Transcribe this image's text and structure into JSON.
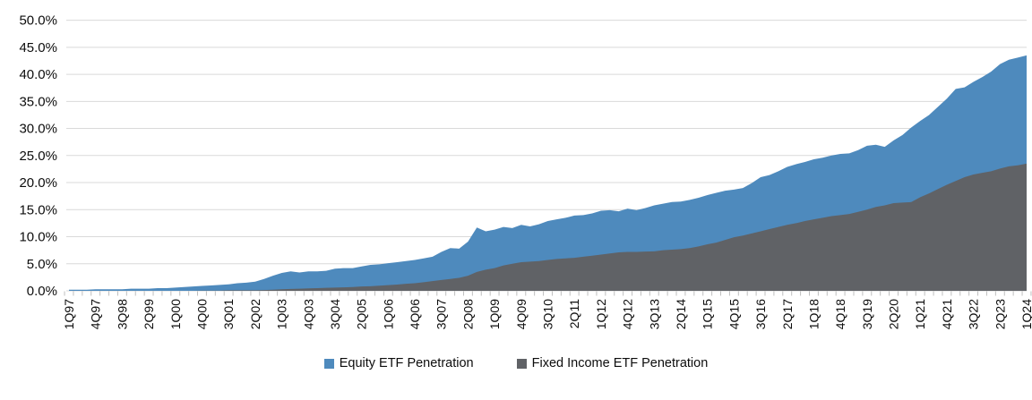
{
  "colors": {
    "equity": "#4E8ABD",
    "fixed_income": "#606266",
    "gridline": "#D9D9D9",
    "tick": "#BFBFBF",
    "axis_text": "#0D0D0D",
    "background": "#FFFFFF"
  },
  "legend": {
    "equity_label": "Equity ETF Penetration",
    "fixed_income_label": "Fixed Income ETF Penetration"
  },
  "chart_data": {
    "type": "area",
    "overlapping": true,
    "grid": true,
    "legend_position": "bottom",
    "ylim": [
      0,
      50
    ],
    "y_tick_labels": [
      "0.0%",
      "5.0%",
      "10.0%",
      "15.0%",
      "20.0%",
      "25.0%",
      "30.0%",
      "35.0%",
      "40.0%",
      "45.0%",
      "50.0%"
    ],
    "x": [
      "1Q97",
      "2Q97",
      "3Q97",
      "4Q97",
      "1Q98",
      "2Q98",
      "3Q98",
      "4Q98",
      "1Q99",
      "2Q99",
      "3Q99",
      "4Q99",
      "1Q00",
      "2Q00",
      "3Q00",
      "4Q00",
      "1Q01",
      "2Q01",
      "3Q01",
      "4Q01",
      "1Q02",
      "2Q02",
      "3Q02",
      "4Q02",
      "1Q03",
      "2Q03",
      "3Q03",
      "4Q03",
      "1Q04",
      "2Q04",
      "3Q04",
      "4Q04",
      "1Q05",
      "2Q05",
      "3Q05",
      "4Q05",
      "1Q06",
      "2Q06",
      "3Q06",
      "4Q06",
      "1Q07",
      "2Q07",
      "3Q07",
      "4Q07",
      "1Q08",
      "2Q08",
      "3Q08",
      "4Q08",
      "1Q09",
      "2Q09",
      "3Q09",
      "4Q09",
      "1Q10",
      "2Q10",
      "3Q10",
      "4Q10",
      "1Q11",
      "2Q11",
      "3Q11",
      "4Q11",
      "1Q12",
      "2Q12",
      "3Q12",
      "4Q12",
      "1Q13",
      "2Q13",
      "3Q13",
      "4Q13",
      "1Q14",
      "2Q14",
      "3Q14",
      "4Q14",
      "1Q15",
      "2Q15",
      "3Q15",
      "4Q15",
      "1Q16",
      "2Q16",
      "3Q16",
      "4Q16",
      "1Q17",
      "2Q17",
      "3Q17",
      "4Q17",
      "1Q18",
      "2Q18",
      "3Q18",
      "4Q18",
      "1Q19",
      "2Q19",
      "3Q19",
      "4Q19",
      "1Q20",
      "2Q20",
      "3Q20",
      "4Q20",
      "1Q21",
      "2Q21",
      "3Q21",
      "4Q21",
      "1Q22",
      "2Q22",
      "3Q22",
      "4Q22",
      "1Q23",
      "2Q23",
      "3Q23",
      "4Q23",
      "1Q24"
    ],
    "x_tick_labels": [
      "1Q97",
      "4Q97",
      "3Q98",
      "2Q99",
      "1Q00",
      "4Q00",
      "3Q01",
      "2Q02",
      "1Q03",
      "4Q03",
      "3Q04",
      "2Q05",
      "1Q06",
      "4Q06",
      "3Q07",
      "2Q08",
      "1Q09",
      "4Q09",
      "3Q10",
      "2Q11",
      "1Q12",
      "4Q12",
      "3Q13",
      "2Q14",
      "1Q15",
      "4Q15",
      "3Q16",
      "2Q17",
      "1Q18",
      "4Q18",
      "3Q19",
      "2Q20",
      "1Q21",
      "4Q21",
      "3Q22",
      "2Q23",
      "1Q24"
    ],
    "x_tick_every": 3,
    "series": [
      {
        "name": "Equity ETF Penetration",
        "color": "#4E8ABD",
        "values": [
          0.2,
          0.2,
          0.2,
          0.3,
          0.3,
          0.3,
          0.3,
          0.4,
          0.4,
          0.4,
          0.5,
          0.5,
          0.6,
          0.7,
          0.8,
          0.9,
          1.0,
          1.1,
          1.2,
          1.4,
          1.5,
          1.7,
          2.2,
          2.8,
          3.3,
          3.6,
          3.4,
          3.6,
          3.6,
          3.7,
          4.1,
          4.2,
          4.2,
          4.5,
          4.8,
          4.9,
          5.1,
          5.3,
          5.5,
          5.7,
          6.0,
          6.3,
          7.2,
          7.9,
          7.8,
          9.1,
          11.7,
          11.0,
          11.3,
          11.8,
          11.6,
          12.2,
          11.9,
          12.3,
          12.9,
          13.2,
          13.5,
          13.9,
          14.0,
          14.3,
          14.8,
          14.9,
          14.7,
          15.2,
          14.9,
          15.3,
          15.8,
          16.1,
          16.4,
          16.5,
          16.8,
          17.2,
          17.7,
          18.1,
          18.5,
          18.7,
          19.0,
          19.9,
          21.0,
          21.4,
          22.1,
          22.9,
          23.4,
          23.8,
          24.3,
          24.6,
          25.0,
          25.3,
          25.4,
          26.0,
          26.8,
          27.0,
          26.6,
          27.8,
          28.8,
          30.2,
          31.4,
          32.5,
          34.0,
          35.5,
          37.3,
          37.6,
          38.6,
          39.5,
          40.5,
          41.9,
          42.7,
          43.1,
          43.5
        ]
      },
      {
        "name": "Fixed Income ETF Penetration",
        "color": "#606266",
        "values": [
          0.0,
          0.0,
          0.0,
          0.0,
          0.0,
          0.0,
          0.0,
          0.0,
          0.0,
          0.0,
          0.0,
          0.0,
          0.0,
          0.0,
          0.0,
          0.05,
          0.05,
          0.05,
          0.1,
          0.1,
          0.1,
          0.1,
          0.15,
          0.2,
          0.3,
          0.35,
          0.4,
          0.45,
          0.5,
          0.55,
          0.6,
          0.65,
          0.7,
          0.8,
          0.85,
          0.95,
          1.05,
          1.15,
          1.3,
          1.4,
          1.6,
          1.8,
          2.0,
          2.2,
          2.4,
          2.8,
          3.5,
          3.9,
          4.2,
          4.7,
          5.0,
          5.3,
          5.4,
          5.5,
          5.7,
          5.9,
          6.0,
          6.1,
          6.3,
          6.5,
          6.7,
          6.9,
          7.1,
          7.2,
          7.2,
          7.25,
          7.3,
          7.5,
          7.6,
          7.7,
          7.9,
          8.2,
          8.6,
          8.9,
          9.4,
          9.9,
          10.2,
          10.6,
          11.0,
          11.4,
          11.8,
          12.2,
          12.5,
          12.9,
          13.2,
          13.5,
          13.8,
          14.0,
          14.2,
          14.6,
          15.0,
          15.5,
          15.8,
          16.2,
          16.3,
          16.4,
          17.3,
          18.0,
          18.8,
          19.6,
          20.3,
          21.0,
          21.5,
          21.8,
          22.1,
          22.6,
          23.0,
          23.2,
          23.5
        ]
      }
    ]
  }
}
